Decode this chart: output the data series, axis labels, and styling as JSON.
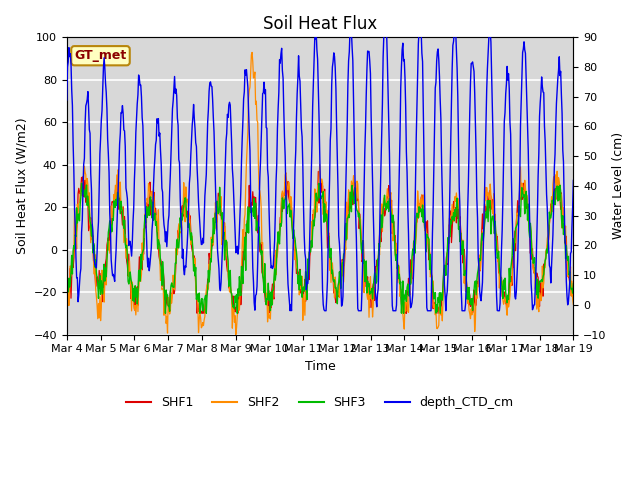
{
  "title": "Soil Heat Flux",
  "xlabel": "Time",
  "ylabel_left": "Soil Heat Flux (W/m2)",
  "ylabel_right": "Water Level (cm)",
  "ylim_left": [
    -40,
    100
  ],
  "ylim_right": [
    -10,
    90
  ],
  "yticks_left": [
    -40,
    -20,
    0,
    20,
    40,
    60,
    80,
    100
  ],
  "yticks_right": [
    -10,
    0,
    10,
    20,
    30,
    40,
    50,
    60,
    70,
    80,
    90
  ],
  "xtick_labels": [
    "Mar 4",
    "Mar 5",
    "Mar 6",
    "Mar 7",
    "Mar 8",
    "Mar 9",
    "Mar 10",
    "Mar 11",
    "Mar 12",
    "Mar 13",
    "Mar 14",
    "Mar 15",
    "Mar 16",
    "Mar 17",
    "Mar 18",
    "Mar 19"
  ],
  "colors": {
    "SHF1": "#dd0000",
    "SHF2": "#ff8c00",
    "SHF3": "#00bb00",
    "depth_CTD_cm": "#0000ee"
  },
  "legend_labels": [
    "SHF1",
    "SHF2",
    "SHF3",
    "depth_CTD_cm"
  ],
  "annotation_text": "GT_met",
  "annotation_color": "#8b0000",
  "annotation_bg": "#ffffc0",
  "annotation_edge": "#b8860b",
  "background_color": "#ffffff",
  "plot_bg_color": "#d8d8d8",
  "grid_color": "#c0c0c0",
  "title_fontsize": 12,
  "axis_label_fontsize": 9,
  "tick_fontsize": 8
}
